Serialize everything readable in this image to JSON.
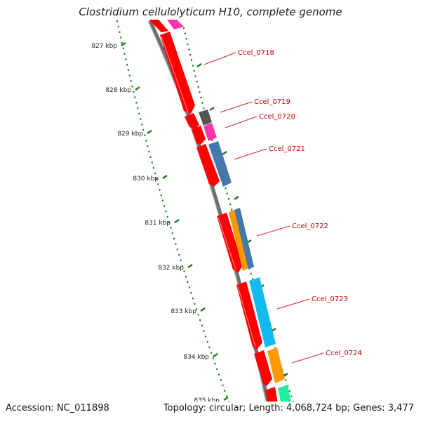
{
  "title": "Clostridium cellulolyticum H10, complete genome",
  "accession_label": "Accession: NC_011898",
  "topology_label": "Topology: circular; Length: 4,068,724 bp; Genes: 3,477",
  "kbp_ticks": [
    {
      "label": "827 kbp"
    },
    {
      "label": "828 kbp"
    },
    {
      "label": "829 kbp"
    },
    {
      "label": "830 kbp"
    },
    {
      "label": "831 kbp"
    },
    {
      "label": "832 kbp"
    },
    {
      "label": "833 kbp"
    },
    {
      "label": "834 kbp"
    },
    {
      "label": "835 kbp"
    }
  ],
  "genes": [
    {
      "label": "Ccel_0718"
    },
    {
      "label": "Ccel_0719"
    },
    {
      "label": "Ccel_0720"
    },
    {
      "label": "Ccel_0721"
    },
    {
      "label": "Ccel_0722"
    },
    {
      "label": "Ccel_0723"
    },
    {
      "label": "Ccel_0724"
    }
  ],
  "colors": {
    "gene_red": "#ff0000",
    "magenta": "#ff33aa",
    "dark_grey": "#555555",
    "steel_blue": "#4477aa",
    "orange": "#ff9900",
    "sky_blue": "#11bbee",
    "mint": "#22ee99",
    "backbone": "#808080",
    "tick_green": "#1a7a1a",
    "label_red": "#cc0000"
  }
}
